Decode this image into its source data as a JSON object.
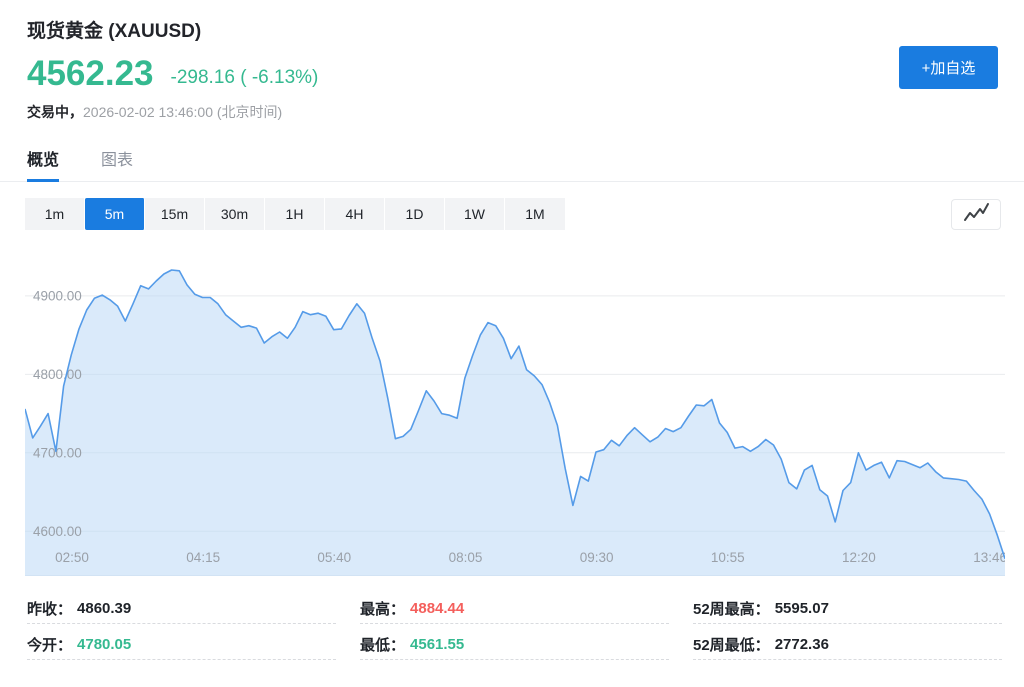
{
  "colors": {
    "green": "#35b990",
    "red": "#f45f5c",
    "blue": "#1a7ce0",
    "chart_line": "#559be8",
    "chart_fill": "#bcd9f5",
    "grid": "#e9ebee",
    "axis_text": "#9aa0a8"
  },
  "header": {
    "title": "现货黄金 (XAUUSD)",
    "price": "4562.23",
    "change": "-298.16 ( -6.13%)",
    "status_label": "交易中，",
    "status_time": "2026-02-02 13:46:00 (北京时间)",
    "add_watchlist_label": "+加自选"
  },
  "tabs": [
    {
      "label": "概览",
      "active": true
    },
    {
      "label": "图表",
      "active": false
    }
  ],
  "timeframes": {
    "options": [
      "1m",
      "5m",
      "15m",
      "30m",
      "1H",
      "4H",
      "1D",
      "1W",
      "1M"
    ],
    "active": "5m"
  },
  "chart_type_button": {
    "icon": "line-chart-icon"
  },
  "chart_data": {
    "type": "area",
    "title": "XAUUSD 5m intraday price",
    "x_labels": [
      "02:50",
      "04:15",
      "05:40",
      "08:05",
      "09:30",
      "10:55",
      "12:20",
      "13:46"
    ],
    "y_ticks": [
      "4900.00",
      "4800.00",
      "4700.00",
      "4600.00"
    ],
    "y_tick_values": [
      4900,
      4800,
      4700,
      4600
    ],
    "ylim": [
      4543,
      4970
    ],
    "grid": true,
    "values": [
      4756,
      4719,
      4734,
      4750,
      4702,
      4785,
      4825,
      4858,
      4882,
      4897,
      4901,
      4895,
      4887,
      4868,
      4890,
      4913,
      4909,
      4919,
      4928,
      4933,
      4932,
      4914,
      4902,
      4898,
      4898,
      4890,
      4876,
      4868,
      4860,
      4862,
      4859,
      4840,
      4848,
      4854,
      4846,
      4860,
      4880,
      4876,
      4878,
      4874,
      4857,
      4858,
      4875,
      4890,
      4878,
      4846,
      4817,
      4770,
      4718,
      4721,
      4730,
      4754,
      4779,
      4766,
      4750,
      4748,
      4744,
      4795,
      4824,
      4850,
      4866,
      4862,
      4846,
      4820,
      4836,
      4806,
      4798,
      4787,
      4764,
      4735,
      4680,
      4633,
      4670,
      4664,
      4701,
      4704,
      4716,
      4709,
      4722,
      4732,
      4723,
      4714,
      4720,
      4731,
      4727,
      4732,
      4747,
      4761,
      4760,
      4768,
      4738,
      4726,
      4706,
      4708,
      4702,
      4708,
      4717,
      4710,
      4692,
      4662,
      4654,
      4678,
      4684,
      4653,
      4645,
      4612,
      4652,
      4662,
      4700,
      4678,
      4684,
      4688,
      4668,
      4690,
      4689,
      4685,
      4681,
      4687,
      4676,
      4668,
      4667,
      4666,
      4664,
      4652,
      4641,
      4622,
      4595,
      4565
    ]
  },
  "stats": {
    "columns": [
      {
        "rows": [
          {
            "label": "昨收：",
            "value": "4860.39",
            "color": "dark"
          },
          {
            "label": "今开：",
            "value": "4780.05",
            "color": "green"
          }
        ]
      },
      {
        "rows": [
          {
            "label": "最高：",
            "value": "4884.44",
            "color": "red"
          },
          {
            "label": "最低：",
            "value": "4561.55",
            "color": "green"
          }
        ]
      },
      {
        "rows": [
          {
            "label": "52周最高：",
            "value": "5595.07",
            "color": "dark"
          },
          {
            "label": "52周最低：",
            "value": "2772.36",
            "color": "dark"
          }
        ]
      }
    ]
  }
}
